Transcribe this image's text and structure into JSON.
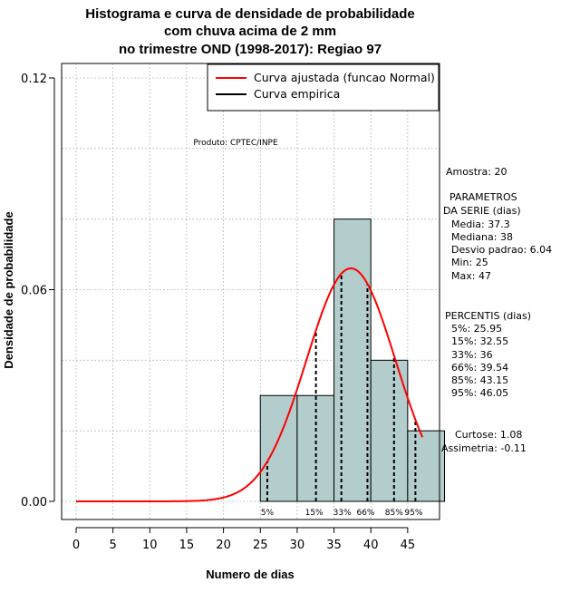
{
  "chart_data": {
    "type": "histogram",
    "title_lines": [
      "Histograma e curva de densidade de probabilidade",
      "com chuva acima de 2 mm",
      "no trimestre OND (1998-2017): Regiao 97"
    ],
    "xlabel": "Numero de dias",
    "ylabel": "Densidade de probabilidade",
    "xlim": [
      -2,
      49
    ],
    "ylim": [
      0,
      0.12
    ],
    "x_ticks": [
      0,
      5,
      10,
      15,
      20,
      25,
      30,
      35,
      40,
      45
    ],
    "y_ticks": [
      0.0,
      0.06,
      0.12
    ],
    "y_tick_labels": [
      "0.00",
      "0.06",
      "0.12"
    ],
    "grid": true,
    "colors": {
      "bar_fill": "#b3cccc",
      "normal_curve": "#ff0000",
      "grid": "#bbbbbb"
    },
    "bins": [
      {
        "from": 25,
        "to": 30,
        "density": 0.03
      },
      {
        "from": 30,
        "to": 35,
        "density": 0.03
      },
      {
        "from": 35,
        "to": 40,
        "density": 0.08
      },
      {
        "from": 40,
        "to": 45,
        "density": 0.04
      },
      {
        "from": 45,
        "to": 50,
        "density": 0.02
      }
    ],
    "normal_curve": {
      "mean": 37.3,
      "sd": 6.04,
      "x_from": 0,
      "x_to": 47
    },
    "legend": {
      "position": "top-right",
      "entries": [
        {
          "label": "Curva ajustada (funcao Normal)",
          "color": "#ff0000"
        },
        {
          "label": "Curva empirica",
          "color": "#000000"
        }
      ]
    },
    "product_label": "Produto: CPTEC/INPE",
    "sample": "Amostra: 20",
    "parameters": {
      "header": [
        "PARAMETROS",
        "DA SERIE (dias)"
      ],
      "lines": [
        "Media: 37.3",
        "Mediana: 38",
        "Desvio padrao: 6.04",
        "Min: 25",
        "Max: 47"
      ]
    },
    "percentiles": {
      "header": "PERCENTIS (dias)",
      "lines": [
        "5%: 25.95",
        "15%: 32.55",
        "33%: 36",
        "66%: 39.54",
        "85%: 43.15",
        "95%: 46.05"
      ],
      "markers": [
        {
          "label": "5%",
          "x": 25.95
        },
        {
          "label": "15%",
          "x": 32.55
        },
        {
          "label": "33%",
          "x": 36
        },
        {
          "label": "66%",
          "x": 39.54
        },
        {
          "label": "85%",
          "x": 43.15
        },
        {
          "label": "95%",
          "x": 46.05
        }
      ]
    },
    "shape": [
      "Curtose: 1.08",
      "Assimetria: -0.11"
    ]
  }
}
